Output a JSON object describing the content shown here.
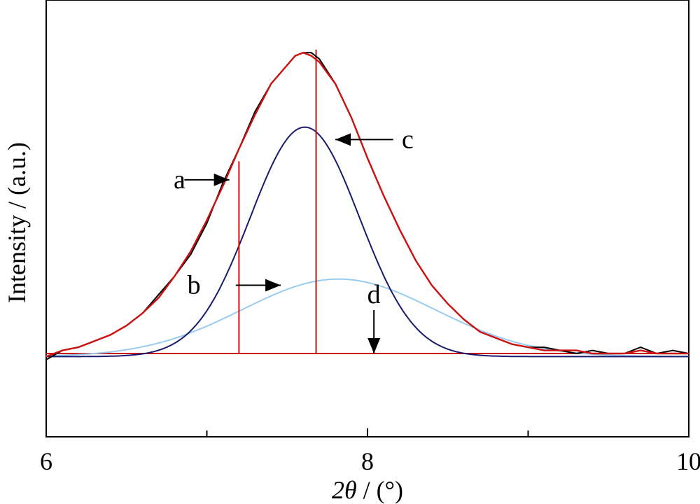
{
  "chart_data": {
    "type": "line",
    "title": "",
    "xlabel_main": "2θ",
    "xlabel_unit": " / (°)",
    "ylabel": "Intensity / (a.u.)",
    "xlim": [
      6,
      10
    ],
    "ylim": [
      -0.27,
      1.0
    ],
    "x_ticks_major": [
      6,
      8,
      10
    ],
    "x_tick_labels": [
      "6",
      "8",
      "10"
    ],
    "x_ticks_minor": [
      7,
      9
    ],
    "grid": false,
    "colors": {
      "raw": "#000000",
      "fit": "#cc1111",
      "peak_narrow": "#1a1a6e",
      "peak_broad": "#99ccee",
      "baseline": "#cc1111"
    },
    "series": [
      {
        "key": "raw",
        "role": "measured pattern (noisy)",
        "x": [
          6.0,
          6.1,
          6.2,
          6.3,
          6.4,
          6.5,
          6.6,
          6.7,
          6.8,
          6.9,
          7.0,
          7.1,
          7.2,
          7.3,
          7.4,
          7.5,
          7.55,
          7.6,
          7.65,
          7.7,
          7.8,
          7.9,
          8.0,
          8.1,
          8.2,
          8.3,
          8.4,
          8.5,
          8.6,
          8.7,
          8.8,
          8.9,
          9.0,
          9.1,
          9.2,
          9.3,
          9.4,
          9.5,
          9.6,
          9.7,
          9.8,
          9.9,
          10.0
        ],
        "y": [
          -0.02,
          0.01,
          0.02,
          0.04,
          0.06,
          0.09,
          0.13,
          0.19,
          0.25,
          0.32,
          0.42,
          0.55,
          0.66,
          0.78,
          0.87,
          0.93,
          0.96,
          0.97,
          0.97,
          0.95,
          0.87,
          0.76,
          0.63,
          0.51,
          0.4,
          0.3,
          0.22,
          0.16,
          0.11,
          0.07,
          0.05,
          0.03,
          0.02,
          0.02,
          0.01,
          0.0,
          0.01,
          0.0,
          0.0,
          0.02,
          0.0,
          0.01,
          0.0
        ]
      },
      {
        "key": "fit",
        "role": "total fit",
        "x": [
          6.0,
          6.1,
          6.2,
          6.3,
          6.4,
          6.5,
          6.6,
          6.7,
          6.8,
          6.9,
          7.0,
          7.1,
          7.2,
          7.3,
          7.4,
          7.5,
          7.55,
          7.6,
          7.65,
          7.7,
          7.8,
          7.9,
          8.0,
          8.1,
          8.2,
          8.3,
          8.4,
          8.5,
          8.6,
          8.7,
          8.8,
          8.9,
          9.0,
          9.1,
          9.2,
          9.3,
          9.4,
          9.5,
          9.6,
          9.7,
          9.8,
          9.9,
          10.0
        ],
        "y": [
          -0.01,
          0.01,
          0.02,
          0.04,
          0.06,
          0.09,
          0.13,
          0.18,
          0.25,
          0.33,
          0.43,
          0.54,
          0.66,
          0.77,
          0.87,
          0.93,
          0.96,
          0.97,
          0.96,
          0.94,
          0.87,
          0.76,
          0.63,
          0.51,
          0.4,
          0.3,
          0.22,
          0.16,
          0.11,
          0.07,
          0.05,
          0.03,
          0.02,
          0.01,
          0.01,
          0.01,
          0.0,
          0.0,
          0.0,
          0.01,
          0.0,
          0.0,
          0.0
        ]
      },
      {
        "key": "peak_narrow",
        "role": "narrow component",
        "center": 7.61,
        "amplitude": 0.74,
        "sigma": 0.34,
        "offset": -0.01
      },
      {
        "key": "peak_broad",
        "role": "broad component",
        "center": 7.82,
        "amplitude": 0.25,
        "sigma": 0.6,
        "offset": -0.01
      }
    ],
    "baseline_y": 0.0,
    "vertical_lines": [
      {
        "x": 7.2,
        "y_top": 0.62
      },
      {
        "x": 7.68,
        "y_top": 0.98
      }
    ],
    "annotations": [
      {
        "label": "a",
        "x": 6.83,
        "y": 0.56,
        "arrow_to": [
          7.14,
          0.56
        ],
        "arrow_from": [
          6.86,
          0.56
        ]
      },
      {
        "label": "b",
        "x": 6.92,
        "y": 0.22,
        "arrow_to": [
          7.46,
          0.22
        ],
        "arrow_from": [
          7.18,
          0.22
        ]
      },
      {
        "label": "c",
        "x": 8.25,
        "y": 0.69,
        "arrow_to": [
          7.8,
          0.69
        ],
        "arrow_from": [
          8.16,
          0.69
        ]
      },
      {
        "label": "d",
        "x": 8.04,
        "y": 0.19,
        "arrow_to": [
          8.04,
          0.0
        ],
        "arrow_from": [
          8.04,
          0.14
        ]
      }
    ]
  }
}
